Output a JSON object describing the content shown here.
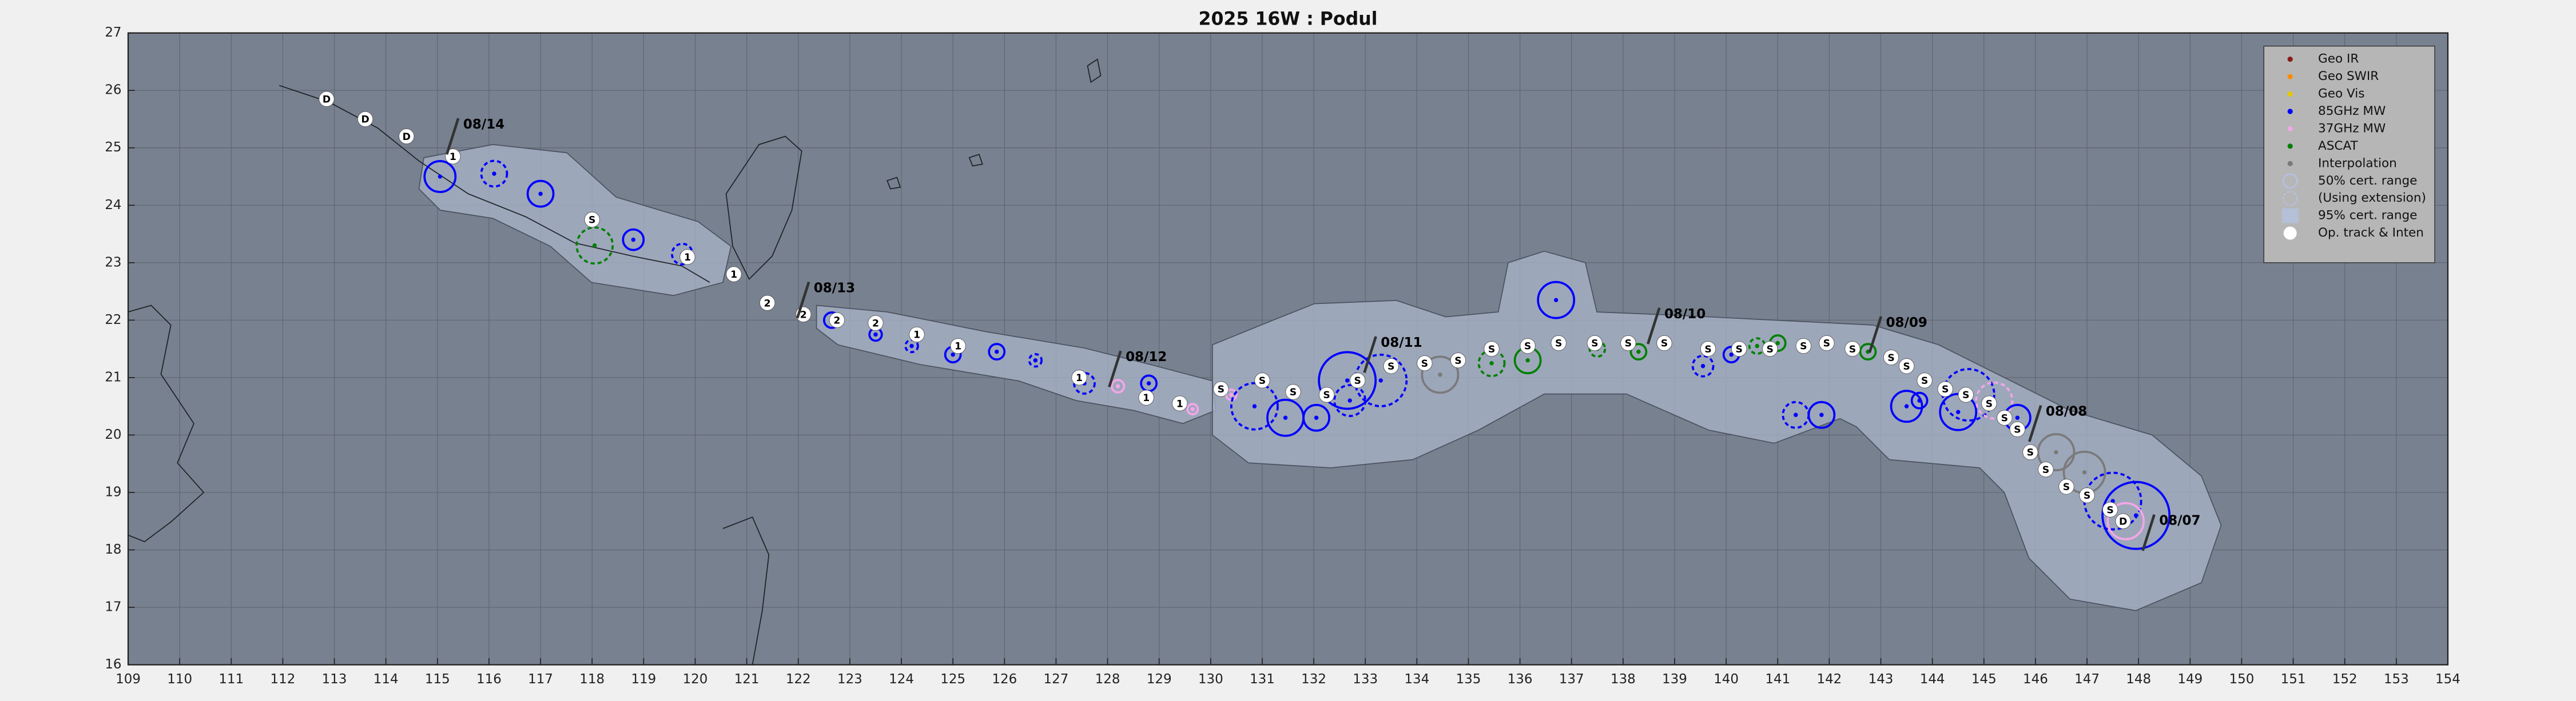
{
  "chart_data": {
    "type": "track",
    "title": "2025  16W :  Podul",
    "xlim": [
      109,
      154
    ],
    "ylim": [
      16,
      27
    ],
    "xticks": [
      109,
      110,
      111,
      112,
      113,
      114,
      115,
      116,
      117,
      118,
      119,
      120,
      121,
      122,
      123,
      124,
      125,
      126,
      127,
      128,
      129,
      130,
      131,
      132,
      133,
      134,
      135,
      136,
      137,
      138,
      139,
      140,
      141,
      142,
      143,
      144,
      145,
      146,
      147,
      148,
      149,
      150,
      151,
      152,
      153,
      154
    ],
    "yticks": [
      16,
      17,
      18,
      19,
      20,
      21,
      22,
      23,
      24,
      25,
      26,
      27
    ],
    "grid": true,
    "legend": "upper right",
    "legend_items": [
      {
        "name": "Geo IR",
        "color": "#8b1a1a",
        "marker": "dot"
      },
      {
        "name": "Geo SWIR",
        "color": "#ff8c00",
        "marker": "dot"
      },
      {
        "name": "Geo Vis",
        "color": "#e6c800",
        "marker": "dot"
      },
      {
        "name": "85GHz MW",
        "color": "#0000ff",
        "marker": "dot"
      },
      {
        "name": "37GHz MW",
        "color": "#f4a6e8",
        "marker": "dot"
      },
      {
        "name": "ASCAT",
        "color": "#008000",
        "marker": "dot"
      },
      {
        "name": "Interpolation",
        "color": "#7a7a7a",
        "marker": "dot"
      },
      {
        "name": "50% cert. range",
        "color": "#b8c0ea",
        "marker": "circle"
      },
      {
        "name": "(Using extension)",
        "color": "#b8c0ea",
        "marker": "dashed-circle"
      },
      {
        "name": "95% cert. range",
        "color": "#b4c0d8",
        "marker": "patch"
      },
      {
        "name": "Op. track & Inten",
        "color": "#ffffff",
        "marker": "disc"
      }
    ],
    "track": {
      "points": [
        {
          "lon": 112.85,
          "lat": 25.85,
          "label": "D"
        },
        {
          "lon": 113.6,
          "lat": 25.5,
          "label": "D"
        },
        {
          "lon": 114.4,
          "lat": 25.2,
          "label": "D"
        },
        {
          "lon": 115.3,
          "lat": 24.85,
          "label": "1"
        },
        {
          "lon": 118.0,
          "lat": 23.75,
          "label": "S"
        },
        {
          "lon": 119.85,
          "lat": 23.1,
          "label": "1"
        },
        {
          "lon": 120.75,
          "lat": 22.8,
          "label": "1"
        },
        {
          "lon": 121.4,
          "lat": 22.3,
          "label": "2"
        },
        {
          "lon": 122.1,
          "lat": 22.1,
          "label": "2"
        },
        {
          "lon": 122.75,
          "lat": 22.0,
          "label": "2"
        },
        {
          "lon": 123.5,
          "lat": 21.95,
          "label": "2"
        },
        {
          "lon": 124.3,
          "lat": 21.75,
          "label": "1"
        },
        {
          "lon": 125.1,
          "lat": 21.55,
          "label": "1"
        },
        {
          "lon": 127.45,
          "lat": 21.0,
          "label": "1"
        },
        {
          "lon": 128.75,
          "lat": 20.65,
          "label": "1"
        },
        {
          "lon": 129.4,
          "lat": 20.55,
          "label": "1"
        },
        {
          "lon": 130.2,
          "lat": 20.8,
          "label": "S"
        },
        {
          "lon": 131.0,
          "lat": 20.95,
          "label": "S"
        },
        {
          "lon": 131.6,
          "lat": 20.75,
          "label": "S"
        },
        {
          "lon": 132.25,
          "lat": 20.7,
          "label": "S"
        },
        {
          "lon": 132.85,
          "lat": 20.95,
          "label": "S"
        },
        {
          "lon": 133.5,
          "lat": 21.2,
          "label": "S"
        },
        {
          "lon": 134.15,
          "lat": 21.25,
          "label": "S"
        },
        {
          "lon": 134.8,
          "lat": 21.3,
          "label": "S"
        },
        {
          "lon": 135.45,
          "lat": 21.5,
          "label": "S"
        },
        {
          "lon": 136.15,
          "lat": 21.55,
          "label": "S"
        },
        {
          "lon": 136.75,
          "lat": 21.6,
          "label": "S"
        },
        {
          "lon": 137.45,
          "lat": 21.6,
          "label": "S"
        },
        {
          "lon": 138.1,
          "lat": 21.6,
          "label": "S"
        },
        {
          "lon": 138.8,
          "lat": 21.6,
          "label": "S"
        },
        {
          "lon": 139.65,
          "lat": 21.5,
          "label": "S"
        },
        {
          "lon": 140.25,
          "lat": 21.5,
          "label": "S"
        },
        {
          "lon": 140.85,
          "lat": 21.5,
          "label": "S"
        },
        {
          "lon": 141.5,
          "lat": 21.55,
          "label": "S"
        },
        {
          "lon": 141.95,
          "lat": 21.6,
          "label": "S"
        },
        {
          "lon": 142.45,
          "lat": 21.5,
          "label": "S"
        },
        {
          "lon": 143.2,
          "lat": 21.35,
          "label": "S"
        },
        {
          "lon": 143.5,
          "lat": 21.2,
          "label": "S"
        },
        {
          "lon": 143.85,
          "lat": 20.95,
          "label": "S"
        },
        {
          "lon": 144.25,
          "lat": 20.8,
          "label": "S"
        },
        {
          "lon": 144.65,
          "lat": 20.7,
          "label": "S"
        },
        {
          "lon": 145.1,
          "lat": 20.55,
          "label": "S"
        },
        {
          "lon": 145.4,
          "lat": 20.3,
          "label": "S"
        },
        {
          "lon": 145.65,
          "lat": 20.1,
          "label": "S"
        },
        {
          "lon": 145.9,
          "lat": 19.7,
          "label": "S"
        },
        {
          "lon": 146.2,
          "lat": 19.4,
          "label": "S"
        },
        {
          "lon": 146.6,
          "lat": 19.1,
          "label": "S"
        },
        {
          "lon": 147.0,
          "lat": 18.95,
          "label": "S"
        },
        {
          "lon": 147.45,
          "lat": 18.7,
          "label": "S"
        },
        {
          "lon": 147.7,
          "lat": 18.5,
          "label": "D"
        }
      ]
    },
    "observations": [
      {
        "type": "85GHz MW",
        "lon": 115.05,
        "lat": 24.5,
        "r": 0.3,
        "style": "solid"
      },
      {
        "type": "85GHz MW",
        "lon": 116.1,
        "lat": 24.55,
        "r": 0.25,
        "style": "dashed"
      },
      {
        "type": "85GHz MW",
        "lon": 117.0,
        "lat": 24.2,
        "r": 0.25,
        "style": "solid"
      },
      {
        "type": "ASCAT",
        "lon": 118.05,
        "lat": 23.3,
        "r": 0.35,
        "style": "dashed"
      },
      {
        "type": "85GHz MW",
        "lon": 118.8,
        "lat": 23.4,
        "r": 0.2,
        "style": "solid"
      },
      {
        "type": "85GHz MW",
        "lon": 119.75,
        "lat": 23.15,
        "r": 0.2,
        "style": "dashed"
      },
      {
        "type": "85GHz MW",
        "lon": 122.65,
        "lat": 22.0,
        "r": 0.15,
        "style": "solid"
      },
      {
        "type": "85GHz MW",
        "lon": 123.5,
        "lat": 21.75,
        "r": 0.12,
        "style": "solid"
      },
      {
        "type": "85GHz MW",
        "lon": 124.2,
        "lat": 21.55,
        "r": 0.12,
        "style": "dashed"
      },
      {
        "type": "85GHz MW",
        "lon": 125.0,
        "lat": 21.4,
        "r": 0.15,
        "style": "solid"
      },
      {
        "type": "85GHz MW",
        "lon": 125.85,
        "lat": 21.45,
        "r": 0.15,
        "style": "solid"
      },
      {
        "type": "85GHz MW",
        "lon": 126.6,
        "lat": 21.3,
        "r": 0.12,
        "style": "dashed"
      },
      {
        "type": "85GHz MW",
        "lon": 127.55,
        "lat": 20.9,
        "r": 0.2,
        "style": "dashed"
      },
      {
        "type": "37GHz MW",
        "lon": 128.2,
        "lat": 20.85,
        "r": 0.12,
        "style": "solid"
      },
      {
        "type": "85GHz MW",
        "lon": 128.8,
        "lat": 20.9,
        "r": 0.15,
        "style": "solid"
      },
      {
        "type": "37GHz MW",
        "lon": 129.65,
        "lat": 20.45,
        "r": 0.1,
        "style": "solid"
      },
      {
        "type": "37GHz MW",
        "lon": 130.4,
        "lat": 20.7,
        "r": 0.1,
        "style": "solid"
      },
      {
        "type": "85GHz MW",
        "lon": 130.85,
        "lat": 20.5,
        "r": 0.45,
        "style": "dashed"
      },
      {
        "type": "85GHz MW",
        "lon": 131.45,
        "lat": 20.3,
        "r": 0.35,
        "style": "solid"
      },
      {
        "type": "85GHz MW",
        "lon": 132.05,
        "lat": 20.3,
        "r": 0.25,
        "style": "solid"
      },
      {
        "type": "85GHz MW",
        "lon": 132.65,
        "lat": 20.95,
        "r": 0.55,
        "style": "solid"
      },
      {
        "type": "85GHz MW",
        "lon": 132.7,
        "lat": 20.6,
        "r": 0.3,
        "style": "dashed"
      },
      {
        "type": "85GHz MW",
        "lon": 133.3,
        "lat": 20.95,
        "r": 0.5,
        "style": "dashed"
      },
      {
        "type": "Interpolation",
        "lon": 134.45,
        "lat": 21.05,
        "r": 0.35,
        "style": "solid"
      },
      {
        "type": "ASCAT",
        "lon": 135.45,
        "lat": 21.25,
        "r": 0.25,
        "style": "dashed"
      },
      {
        "type": "ASCAT",
        "lon": 136.15,
        "lat": 21.3,
        "r": 0.25,
        "style": "solid"
      },
      {
        "type": "85GHz MW",
        "lon": 136.7,
        "lat": 22.35,
        "r": 0.35,
        "style": "solid"
      },
      {
        "type": "ASCAT",
        "lon": 137.5,
        "lat": 21.5,
        "r": 0.15,
        "style": "dashed"
      },
      {
        "type": "ASCAT",
        "lon": 138.3,
        "lat": 21.45,
        "r": 0.15,
        "style": "solid"
      },
      {
        "type": "85GHz MW",
        "lon": 139.55,
        "lat": 21.2,
        "r": 0.2,
        "style": "dashed"
      },
      {
        "type": "85GHz MW",
        "lon": 140.1,
        "lat": 21.4,
        "r": 0.15,
        "style": "solid"
      },
      {
        "type": "ASCAT",
        "lon": 140.6,
        "lat": 21.55,
        "r": 0.15,
        "style": "dashed"
      },
      {
        "type": "ASCAT",
        "lon": 141.0,
        "lat": 21.6,
        "r": 0.15,
        "style": "solid"
      },
      {
        "type": "85GHz MW",
        "lon": 141.35,
        "lat": 20.35,
        "r": 0.25,
        "style": "dashed"
      },
      {
        "type": "85GHz MW",
        "lon": 141.85,
        "lat": 20.35,
        "r": 0.25,
        "style": "solid"
      },
      {
        "type": "ASCAT",
        "lon": 142.75,
        "lat": 21.45,
        "r": 0.15,
        "style": "solid"
      },
      {
        "type": "85GHz MW",
        "lon": 143.5,
        "lat": 20.5,
        "r": 0.3,
        "style": "solid"
      },
      {
        "type": "85GHz MW",
        "lon": 143.75,
        "lat": 20.6,
        "r": 0.15,
        "style": "solid"
      },
      {
        "type": "85GHz MW",
        "lon": 144.5,
        "lat": 20.4,
        "r": 0.35,
        "style": "solid"
      },
      {
        "type": "85GHz MW",
        "lon": 144.7,
        "lat": 20.7,
        "r": 0.5,
        "style": "dashed"
      },
      {
        "type": "37GHz MW",
        "lon": 145.2,
        "lat": 20.6,
        "r": 0.35,
        "style": "dashed"
      },
      {
        "type": "85GHz MW",
        "lon": 145.65,
        "lat": 20.3,
        "r": 0.25,
        "style": "solid"
      },
      {
        "type": "Interpolation",
        "lon": 146.4,
        "lat": 19.7,
        "r": 0.35,
        "style": "solid"
      },
      {
        "type": "Interpolation",
        "lon": 146.95,
        "lat": 19.35,
        "r": 0.4,
        "style": "solid"
      },
      {
        "type": "85GHz MW",
        "lon": 147.5,
        "lat": 18.85,
        "r": 0.55,
        "style": "dashed"
      },
      {
        "type": "37GHz MW",
        "lon": 147.75,
        "lat": 18.5,
        "r": 0.35,
        "style": "solid"
      },
      {
        "type": "85GHz MW",
        "lon": 147.95,
        "lat": 18.6,
        "r": 0.65,
        "style": "solid"
      }
    ],
    "dates": [
      {
        "label": "08/14",
        "lon": 115.5,
        "lat": 25.4
      },
      {
        "label": "08/13",
        "lon": 122.3,
        "lat": 22.55
      },
      {
        "label": "08/12",
        "lon": 128.35,
        "lat": 21.35
      },
      {
        "label": "08/11",
        "lon": 133.3,
        "lat": 21.6
      },
      {
        "label": "08/10",
        "lon": 138.8,
        "lat": 22.1
      },
      {
        "label": "08/09",
        "lon": 143.1,
        "lat": 21.95
      },
      {
        "label": "08/08",
        "lon": 146.2,
        "lat": 20.4
      },
      {
        "label": "08/07",
        "lon": 148.4,
        "lat": 18.5
      }
    ]
  }
}
